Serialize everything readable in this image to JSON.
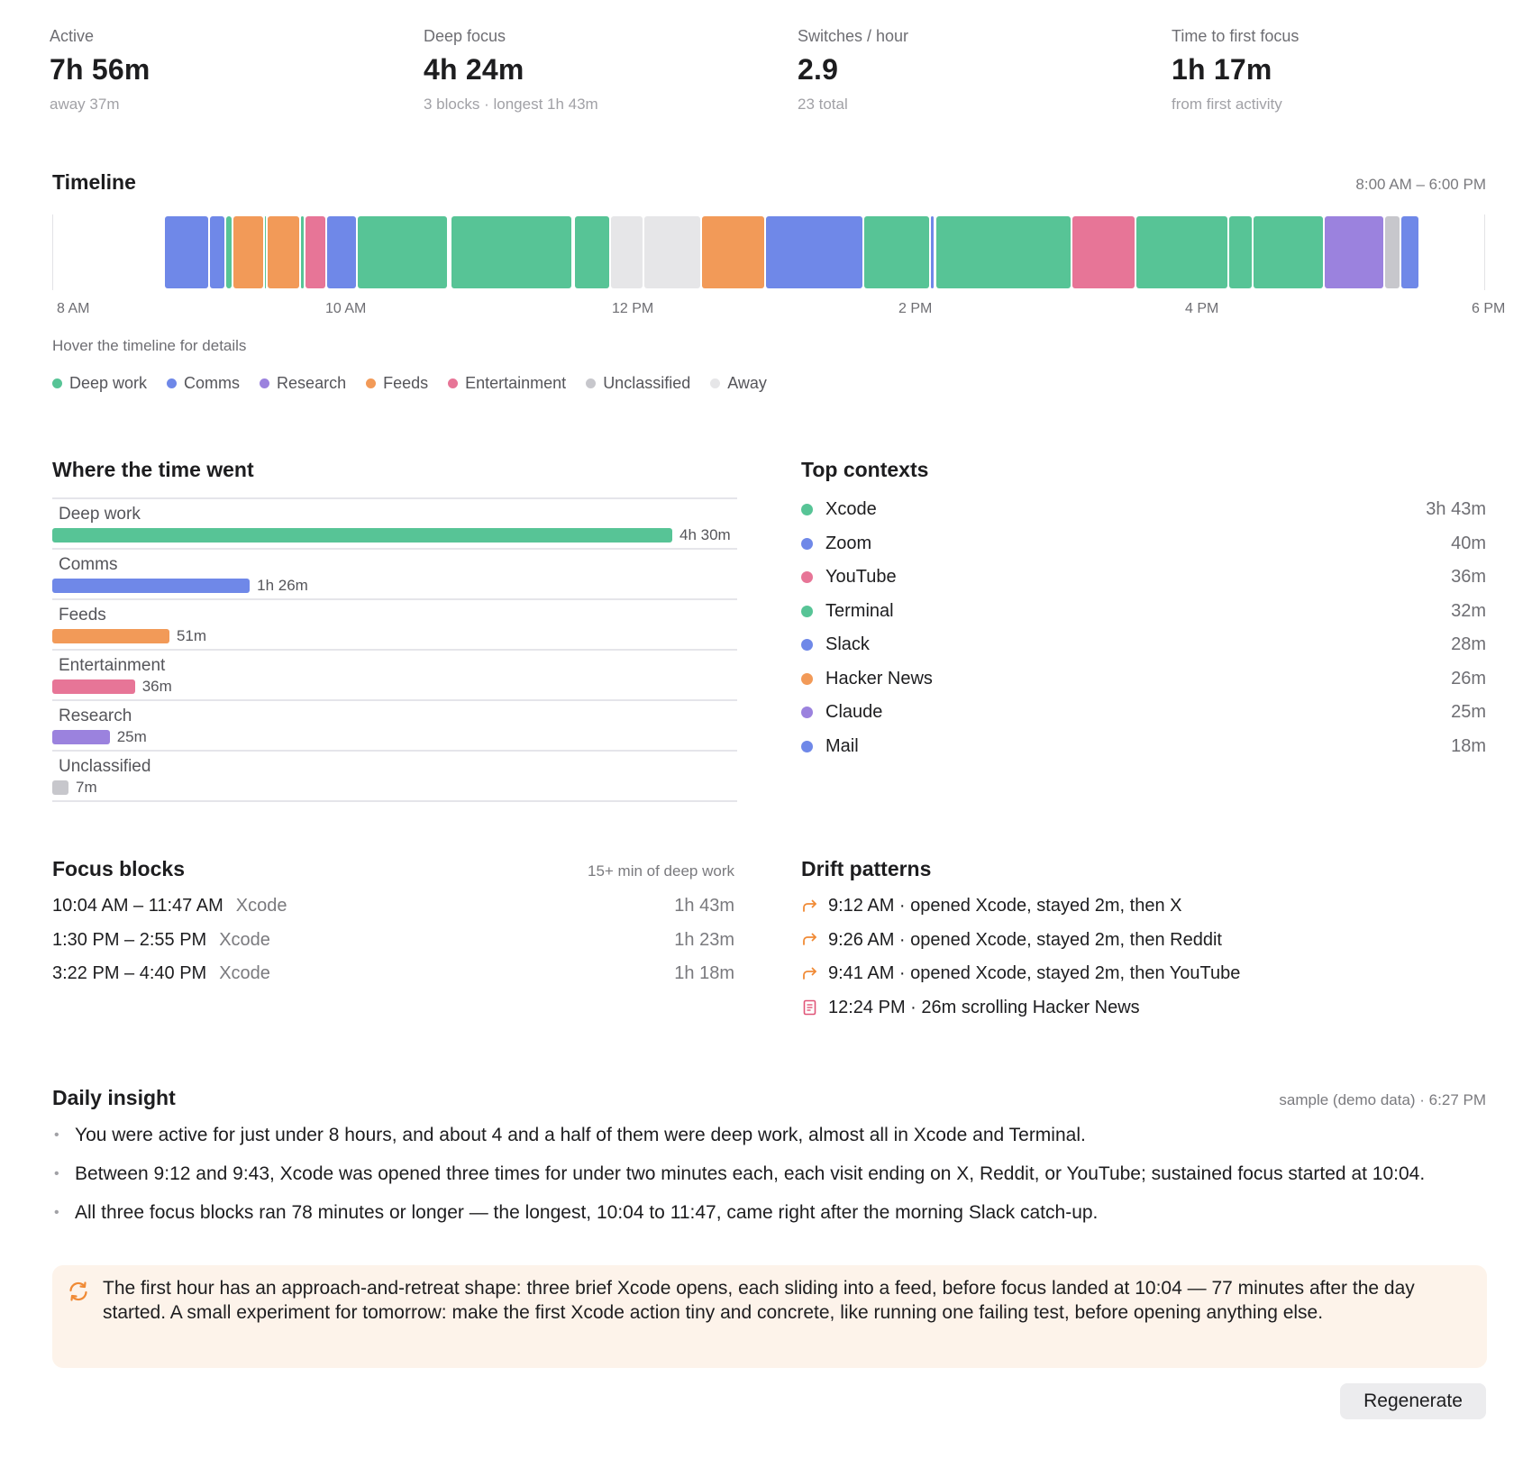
{
  "colors": {
    "deep_work": "#57c496",
    "comms": "#6f88e8",
    "research": "#9b82de",
    "feeds": "#f29a58",
    "entertainment": "#e77597",
    "unclassified": "#c7c7cc",
    "away": "#e6e6e8"
  },
  "stats": [
    {
      "label": "Active",
      "value": "7h 56m",
      "sub": "away 37m"
    },
    {
      "label": "Deep focus",
      "value": "4h 24m",
      "sub": "3 blocks · longest 1h 43m"
    },
    {
      "label": "Switches / hour",
      "value": "2.9",
      "sub": "23 total"
    },
    {
      "label": "Time to first focus",
      "value": "1h 17m",
      "sub": "from first activity"
    }
  ],
  "timeline": {
    "title": "Timeline",
    "range": "8:00 AM – 6:00 PM",
    "hint": "Hover the timeline for details",
    "ticks": [
      "8 AM",
      "10 AM",
      "12 PM",
      "2 PM",
      "4 PM",
      "6 PM"
    ],
    "segments": [
      {
        "start": "8:47",
        "end": "9:06",
        "category": "comms"
      },
      {
        "start": "9:06",
        "end": "9:13",
        "category": "comms"
      },
      {
        "start": "9:13",
        "end": "9:16",
        "category": "deep_work"
      },
      {
        "start": "9:16",
        "end": "9:29",
        "category": "feeds"
      },
      {
        "start": "9:29",
        "end": "9:30",
        "category": "deep_work"
      },
      {
        "start": "9:30",
        "end": "9:44",
        "category": "feeds"
      },
      {
        "start": "9:44",
        "end": "9:46",
        "category": "deep_work"
      },
      {
        "start": "9:46",
        "end": "9:55",
        "category": "entertainment"
      },
      {
        "start": "9:55",
        "end": "10:08",
        "category": "comms"
      },
      {
        "start": "10:08",
        "end": "10:46",
        "category": "deep_work"
      },
      {
        "start": "10:47",
        "end": "11:38",
        "category": "deep_work"
      },
      {
        "start": "11:39",
        "end": "11:54",
        "category": "deep_work"
      },
      {
        "start": "11:54",
        "end": "12:08",
        "category": "away"
      },
      {
        "start": "12:08",
        "end": "12:32",
        "category": "away"
      },
      {
        "start": "12:32",
        "end": "12:59",
        "category": "feeds"
      },
      {
        "start": "12:59",
        "end": "13:40",
        "category": "comms"
      },
      {
        "start": "13:40",
        "end": "14:08",
        "category": "deep_work"
      },
      {
        "start": "14:08",
        "end": "14:10",
        "category": "comms"
      },
      {
        "start": "14:10",
        "end": "15:07",
        "category": "deep_work"
      },
      {
        "start": "15:07",
        "end": "15:34",
        "category": "entertainment"
      },
      {
        "start": "15:34",
        "end": "16:13",
        "category": "deep_work"
      },
      {
        "start": "16:13",
        "end": "16:23",
        "category": "deep_work"
      },
      {
        "start": "16:23",
        "end": "16:53",
        "category": "deep_work"
      },
      {
        "start": "16:53",
        "end": "17:18",
        "category": "research"
      },
      {
        "start": "17:18",
        "end": "17:25",
        "category": "unclassified"
      },
      {
        "start": "17:25",
        "end": "17:33",
        "category": "comms"
      }
    ]
  },
  "legend": [
    {
      "key": "deep_work",
      "label": "Deep work"
    },
    {
      "key": "comms",
      "label": "Comms"
    },
    {
      "key": "research",
      "label": "Research"
    },
    {
      "key": "feeds",
      "label": "Feeds"
    },
    {
      "key": "entertainment",
      "label": "Entertainment"
    },
    {
      "key": "unclassified",
      "label": "Unclassified"
    },
    {
      "key": "away",
      "label": "Away"
    }
  ],
  "where_time_went": {
    "title": "Where the time went",
    "rows": [
      {
        "key": "deep_work",
        "label": "Deep work",
        "value": "4h 30m",
        "minutes": 270
      },
      {
        "key": "comms",
        "label": "Comms",
        "value": "1h 26m",
        "minutes": 86
      },
      {
        "key": "feeds",
        "label": "Feeds",
        "value": "51m",
        "minutes": 51
      },
      {
        "key": "entertainment",
        "label": "Entertainment",
        "value": "36m",
        "minutes": 36
      },
      {
        "key": "research",
        "label": "Research",
        "value": "25m",
        "minutes": 25
      },
      {
        "key": "unclassified",
        "label": "Unclassified",
        "value": "7m",
        "minutes": 7
      }
    ]
  },
  "top_contexts": {
    "title": "Top contexts",
    "items": [
      {
        "name": "Xcode",
        "value": "3h 43m",
        "key": "deep_work"
      },
      {
        "name": "Zoom",
        "value": "40m",
        "key": "comms"
      },
      {
        "name": "YouTube",
        "value": "36m",
        "key": "entertainment"
      },
      {
        "name": "Terminal",
        "value": "32m",
        "key": "deep_work"
      },
      {
        "name": "Slack",
        "value": "28m",
        "key": "comms"
      },
      {
        "name": "Hacker News",
        "value": "26m",
        "key": "feeds"
      },
      {
        "name": "Claude",
        "value": "25m",
        "key": "research"
      },
      {
        "name": "Mail",
        "value": "18m",
        "key": "comms"
      }
    ]
  },
  "focus_blocks": {
    "title": "Focus blocks",
    "meta": "15+ min of deep work",
    "items": [
      {
        "time": "10:04 AM – 11:47 AM",
        "app": "Xcode",
        "duration": "1h 43m"
      },
      {
        "time": "1:30 PM – 2:55 PM",
        "app": "Xcode",
        "duration": "1h 23m"
      },
      {
        "time": "3:22 PM – 4:40 PM",
        "app": "Xcode",
        "duration": "1h 18m"
      }
    ]
  },
  "drift_patterns": {
    "title": "Drift patterns",
    "items": [
      {
        "icon": "redirect-arrow-icon",
        "text": "9:12 AM · opened Xcode, stayed 2m, then X"
      },
      {
        "icon": "redirect-arrow-icon",
        "text": "9:26 AM · opened Xcode, stayed 2m, then Reddit"
      },
      {
        "icon": "redirect-arrow-icon",
        "text": "9:41 AM · opened Xcode, stayed 2m, then YouTube"
      },
      {
        "icon": "scroll-icon",
        "text": "12:24 PM · 26m scrolling Hacker News"
      }
    ]
  },
  "daily_insight": {
    "title": "Daily insight",
    "meta": "sample (demo data) · 6:27 PM",
    "bullets": [
      "You were active for just under 8 hours, and about 4 and a half of them were deep work, almost all in Xcode and Terminal.",
      "Between 9:12 and 9:43, Xcode was opened three times for under two minutes each, each visit ending on X, Reddit, or YouTube; sustained focus started at 10:04.",
      "All three focus blocks ran 78 minutes or longer — the longest, 10:04 to 11:47, came right after the morning Slack catch-up."
    ],
    "callout": "The first hour has an approach-and-retreat shape: three brief Xcode opens, each sliding into a feed, before focus landed at 10:04 — 77 minutes after the day started. A small experiment for tomorrow: make the first Xcode action tiny and concrete, like running one failing test, before opening anything else.",
    "callout_icon": "cycle-icon",
    "regenerate_label": "Regenerate"
  }
}
